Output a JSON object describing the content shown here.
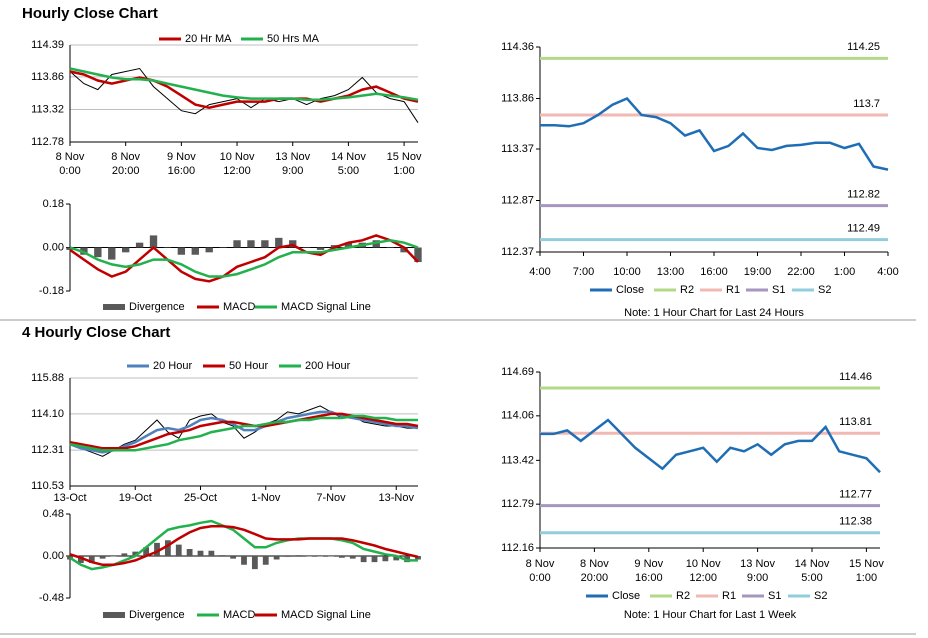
{
  "headings": [
    "Hourly Close Chart",
    "4 Hourly Close Chart"
  ],
  "chart_data": [
    {
      "type": "line",
      "legend": "top",
      "grid": true,
      "x": [
        0,
        5,
        10,
        15,
        20,
        25,
        30,
        35,
        40,
        45,
        50,
        55,
        60,
        65,
        70,
        75,
        80,
        85,
        90,
        95,
        100,
        105,
        110,
        115,
        120,
        125
      ],
      "xlim": [
        0,
        125
      ],
      "xticks": [
        {
          "value": 0,
          "label": [
            "8 Nov",
            "0:00"
          ]
        },
        {
          "value": 20,
          "label": [
            "8 Nov",
            "20:00"
          ]
        },
        {
          "value": 40,
          "label": [
            "9 Nov",
            "16:00"
          ]
        },
        {
          "value": 60,
          "label": [
            "10 Nov",
            "12:00"
          ]
        },
        {
          "value": 80,
          "label": [
            "13 Nov",
            "9:00"
          ]
        },
        {
          "value": 100,
          "label": [
            "14 Nov",
            "5:00"
          ]
        },
        {
          "value": 120,
          "label": [
            "15 Nov",
            "1:00"
          ]
        }
      ],
      "ylim": [
        112.78,
        114.39
      ],
      "yticks": [
        112.78,
        113.32,
        113.86,
        114.39
      ],
      "series": [
        {
          "color": "#000000",
          "values": [
            113.95,
            113.75,
            113.65,
            113.9,
            113.95,
            114.0,
            113.7,
            113.5,
            113.3,
            113.25,
            113.4,
            113.45,
            113.5,
            113.35,
            113.5,
            113.45,
            113.5,
            113.4,
            113.5,
            113.55,
            113.65,
            113.85,
            113.6,
            113.5,
            113.45,
            113.1
          ]
        },
        {
          "name": "20 Hr MA",
          "color": "#c00000",
          "values": [
            113.95,
            113.9,
            113.8,
            113.75,
            113.8,
            113.85,
            113.8,
            113.7,
            113.55,
            113.4,
            113.35,
            113.4,
            113.45,
            113.45,
            113.45,
            113.5,
            113.5,
            113.5,
            113.45,
            113.5,
            113.55,
            113.65,
            113.7,
            113.6,
            113.5,
            113.45
          ]
        },
        {
          "name": "50 Hrs MA",
          "color": "#22b14c",
          "values": [
            114.0,
            113.95,
            113.9,
            113.85,
            113.82,
            113.82,
            113.8,
            113.75,
            113.7,
            113.65,
            113.6,
            113.55,
            113.52,
            113.5,
            113.5,
            113.5,
            113.5,
            113.48,
            113.48,
            113.5,
            113.52,
            113.55,
            113.58,
            113.55,
            113.52,
            113.48
          ]
        }
      ]
    },
    {
      "type": "line",
      "legend": "bottom",
      "grid": false,
      "x": [
        0,
        5,
        10,
        15,
        20,
        25,
        30,
        35,
        40,
        45,
        50,
        55,
        60,
        65,
        70,
        75,
        80,
        85,
        90,
        95,
        100,
        105,
        110,
        115,
        120,
        125
      ],
      "xlim": [
        0,
        125
      ],
      "ylim": [
        -0.18,
        0.18
      ],
      "yticks": [
        -0.18,
        {
          "value": 0,
          "label": "0.00"
        },
        0.18
      ],
      "series": [
        {
          "name": "Divergence",
          "kind": "bar",
          "color": "#595959",
          "values": [
            -0.01,
            -0.03,
            -0.04,
            -0.05,
            -0.02,
            0.02,
            0.05,
            0,
            -0.03,
            -0.03,
            -0.02,
            0,
            0.03,
            0.03,
            0.03,
            0.04,
            0.03,
            0,
            -0.01,
            0.01,
            0.02,
            0.02,
            0.03,
            0,
            -0.02,
            -0.06
          ]
        },
        {
          "name": "MACD",
          "color": "#c00000",
          "values": [
            -0.01,
            -0.05,
            -0.09,
            -0.12,
            -0.1,
            -0.05,
            0,
            -0.05,
            -0.1,
            -0.13,
            -0.14,
            -0.12,
            -0.08,
            -0.06,
            -0.04,
            0,
            0.01,
            -0.02,
            -0.03,
            0,
            0.02,
            0.03,
            0.05,
            0.03,
            0,
            -0.06
          ]
        },
        {
          "name": "MACD Signal Line",
          "color": "#22b14c",
          "values": [
            0,
            -0.02,
            -0.05,
            -0.07,
            -0.08,
            -0.07,
            -0.05,
            -0.05,
            -0.07,
            -0.1,
            -0.12,
            -0.12,
            -0.11,
            -0.09,
            -0.07,
            -0.04,
            -0.02,
            -0.02,
            -0.02,
            -0.01,
            0,
            0.01,
            0.02,
            0.03,
            0.02,
            0
          ]
        }
      ]
    },
    {
      "type": "line",
      "legend": "bottom",
      "grid": false,
      "note": "Note: 1 Hour Chart for Last 24 Hours",
      "x": [
        0,
        1,
        2,
        3,
        4,
        5,
        6,
        7,
        8,
        9,
        10,
        11,
        12,
        13,
        14,
        15,
        16,
        17,
        18,
        19,
        20,
        21,
        22,
        23,
        24
      ],
      "xlim": [
        0,
        24
      ],
      "xticks": [
        {
          "value": 0,
          "label": "4:00"
        },
        {
          "value": 3,
          "label": "7:00"
        },
        {
          "value": 6,
          "label": "10:00"
        },
        {
          "value": 9,
          "label": "13:00"
        },
        {
          "value": 12,
          "label": "16:00"
        },
        {
          "value": 15,
          "label": "19:00"
        },
        {
          "value": 18,
          "label": "22:00"
        },
        {
          "value": 21,
          "label": "1:00"
        },
        {
          "value": 24,
          "label": "4:00"
        }
      ],
      "ylim": [
        112.37,
        114.36
      ],
      "yticks": [
        112.37,
        112.87,
        113.37,
        113.86,
        114.36
      ],
      "series": [
        {
          "name": "Close",
          "color": "#1f6eb5",
          "values": [
            113.6,
            113.6,
            113.59,
            113.62,
            113.7,
            113.8,
            113.86,
            113.7,
            113.68,
            113.62,
            113.5,
            113.55,
            113.35,
            113.4,
            113.52,
            113.38,
            113.36,
            113.4,
            113.41,
            113.43,
            113.43,
            113.38,
            113.42,
            113.2,
            113.17
          ]
        }
      ],
      "levels": [
        {
          "name": "R2",
          "color": "#b4d88a",
          "value": 114.25
        },
        {
          "name": "R1",
          "color": "#f2b8b4",
          "value": 113.7
        },
        {
          "name": "S1",
          "color": "#a596bf",
          "value": 112.82
        },
        {
          "name": "S2",
          "color": "#92cddc",
          "value": 112.49
        }
      ]
    },
    {
      "type": "line",
      "legend": "top",
      "grid": true,
      "x": [
        0,
        1,
        2,
        3,
        4,
        5,
        6,
        7,
        8,
        9,
        10,
        11,
        12,
        13,
        14,
        15,
        16,
        17,
        18,
        19,
        20,
        21,
        22,
        23,
        24,
        25,
        26,
        27,
        28,
        29,
        30,
        31,
        32
      ],
      "xlim": [
        0,
        32
      ],
      "xticks": [
        {
          "value": 0,
          "label": "13-Oct"
        },
        {
          "value": 6,
          "label": "19-Oct"
        },
        {
          "value": 12,
          "label": "25-Oct"
        },
        {
          "value": 18,
          "label": "1-Nov"
        },
        {
          "value": 24,
          "label": "7-Nov"
        },
        {
          "value": 30,
          "label": "13-Nov"
        }
      ],
      "ylim": [
        110.53,
        115.88
      ],
      "yticks": [
        110.53,
        112.31,
        {
          "value": 114.1,
          "label": "114.10"
        },
        115.88
      ],
      "series": [
        {
          "color": "#000000",
          "values": [
            112.7,
            112.4,
            112.2,
            112.0,
            112.3,
            112.6,
            112.8,
            113.3,
            113.8,
            113.2,
            112.9,
            113.8,
            114.0,
            114.1,
            113.7,
            113.5,
            112.9,
            113.2,
            113.6,
            113.8,
            114.2,
            114.1,
            114.3,
            114.5,
            114.2,
            113.9,
            114.0,
            113.7,
            113.6,
            113.5,
            113.5,
            113.4,
            113.4
          ]
        },
        {
          "name": "20 Hour",
          "color": "#4f81bd",
          "values": [
            112.6,
            112.4,
            112.3,
            112.2,
            112.3,
            112.5,
            112.7,
            113.0,
            113.3,
            113.4,
            113.3,
            113.5,
            113.8,
            113.9,
            113.8,
            113.6,
            113.3,
            113.3,
            113.5,
            113.7,
            113.9,
            114.0,
            114.1,
            114.2,
            114.2,
            114.0,
            113.9,
            113.8,
            113.7,
            113.6,
            113.5,
            113.5,
            113.4
          ]
        },
        {
          "name": "50 Hour",
          "color": "#c00000",
          "values": [
            112.7,
            112.6,
            112.5,
            112.4,
            112.4,
            112.4,
            112.5,
            112.7,
            112.9,
            113.1,
            113.2,
            113.3,
            113.5,
            113.6,
            113.7,
            113.7,
            113.6,
            113.5,
            113.5,
            113.6,
            113.7,
            113.8,
            113.9,
            114.0,
            114.1,
            114.1,
            114.0,
            113.9,
            113.8,
            113.7,
            113.6,
            113.6,
            113.5
          ]
        },
        {
          "name": "200 Hour",
          "color": "#22b14c",
          "values": [
            112.6,
            112.5,
            112.4,
            112.3,
            112.3,
            112.3,
            112.3,
            112.4,
            112.5,
            112.6,
            112.8,
            112.9,
            113.0,
            113.2,
            113.3,
            113.4,
            113.5,
            113.5,
            113.6,
            113.7,
            113.7,
            113.8,
            113.8,
            113.9,
            113.9,
            113.9,
            114.0,
            114.0,
            113.9,
            113.9,
            113.8,
            113.8,
            113.8
          ]
        }
      ]
    },
    {
      "type": "line",
      "legend": "bottom",
      "grid": false,
      "x": [
        0,
        1,
        2,
        3,
        4,
        5,
        6,
        7,
        8,
        9,
        10,
        11,
        12,
        13,
        14,
        15,
        16,
        17,
        18,
        19,
        20,
        21,
        22,
        23,
        24,
        25,
        26,
        27,
        28,
        29,
        30,
        31,
        32
      ],
      "xlim": [
        0,
        32
      ],
      "ylim": [
        -0.48,
        0.48
      ],
      "yticks": [
        -0.48,
        {
          "value": 0,
          "label": "0.00"
        },
        0.48
      ],
      "series": [
        {
          "name": "Divergence",
          "kind": "bar",
          "color": "#595959",
          "values": [
            -0.04,
            -0.08,
            -0.08,
            -0.03,
            0,
            0.03,
            0.05,
            0.1,
            0.15,
            0.18,
            0.13,
            0.08,
            0.06,
            0.06,
            0.01,
            -0.03,
            -0.1,
            -0.15,
            -0.1,
            -0.04,
            -0.01,
            0.01,
            0,
            0,
            0,
            -0.02,
            -0.03,
            -0.07,
            -0.07,
            -0.06,
            -0.05,
            -0.07,
            -0.04
          ]
        },
        {
          "name": "MACD",
          "color": "#22b14c",
          "values": [
            -0.02,
            -0.1,
            -0.15,
            -0.13,
            -0.1,
            -0.05,
            0,
            0.1,
            0.2,
            0.3,
            0.33,
            0.35,
            0.38,
            0.4,
            0.35,
            0.3,
            0.2,
            0.1,
            0.1,
            0.15,
            0.18,
            0.2,
            0.2,
            0.2,
            0.2,
            0.18,
            0.15,
            0.08,
            0.05,
            0.02,
            0,
            -0.05,
            -0.05
          ]
        },
        {
          "name": "MACD Signal Line",
          "color": "#c00000",
          "values": [
            0.02,
            -0.02,
            -0.07,
            -0.1,
            -0.1,
            -0.08,
            -0.05,
            0,
            0.05,
            0.12,
            0.2,
            0.27,
            0.32,
            0.34,
            0.34,
            0.33,
            0.3,
            0.25,
            0.2,
            0.19,
            0.19,
            0.19,
            0.2,
            0.2,
            0.2,
            0.2,
            0.18,
            0.15,
            0.12,
            0.08,
            0.05,
            0.02,
            -0.01
          ]
        }
      ]
    },
    {
      "type": "line",
      "legend": "bottom",
      "grid": false,
      "note": "Note: 1 Hour Chart for Last 1 Week",
      "x": [
        0,
        5,
        10,
        15,
        20,
        25,
        30,
        35,
        40,
        45,
        50,
        55,
        60,
        65,
        70,
        75,
        80,
        85,
        90,
        95,
        100,
        105,
        110,
        115,
        120,
        125
      ],
      "xlim": [
        0,
        125
      ],
      "xticks": [
        {
          "value": 0,
          "label": [
            "8 Nov",
            "0:00"
          ]
        },
        {
          "value": 20,
          "label": [
            "8 Nov",
            "20:00"
          ]
        },
        {
          "value": 40,
          "label": [
            "9 Nov",
            "16:00"
          ]
        },
        {
          "value": 60,
          "label": [
            "10 Nov",
            "12:00"
          ]
        },
        {
          "value": 80,
          "label": [
            "13 Nov",
            "9:00"
          ]
        },
        {
          "value": 100,
          "label": [
            "14 Nov",
            "5:00"
          ]
        },
        {
          "value": 120,
          "label": [
            "15 Nov",
            "1:00"
          ]
        }
      ],
      "ylim": [
        112.16,
        114.69
      ],
      "yticks": [
        112.16,
        112.79,
        113.42,
        114.06,
        114.69
      ],
      "series": [
        {
          "name": "Close",
          "color": "#1f6eb5",
          "values": [
            113.8,
            113.8,
            113.85,
            113.7,
            113.85,
            114.0,
            113.8,
            113.6,
            113.45,
            113.3,
            113.5,
            113.55,
            113.6,
            113.4,
            113.6,
            113.55,
            113.65,
            113.5,
            113.65,
            113.7,
            113.7,
            113.9,
            113.55,
            113.5,
            113.45,
            113.25
          ]
        }
      ],
      "levels": [
        {
          "name": "R2",
          "color": "#b4d88a",
          "value": 114.46
        },
        {
          "name": "R1",
          "color": "#f2b8b4",
          "value": 113.81
        },
        {
          "name": "S1",
          "color": "#a596bf",
          "value": 112.77
        },
        {
          "name": "S2",
          "color": "#92cddc",
          "value": 112.38
        }
      ]
    }
  ]
}
